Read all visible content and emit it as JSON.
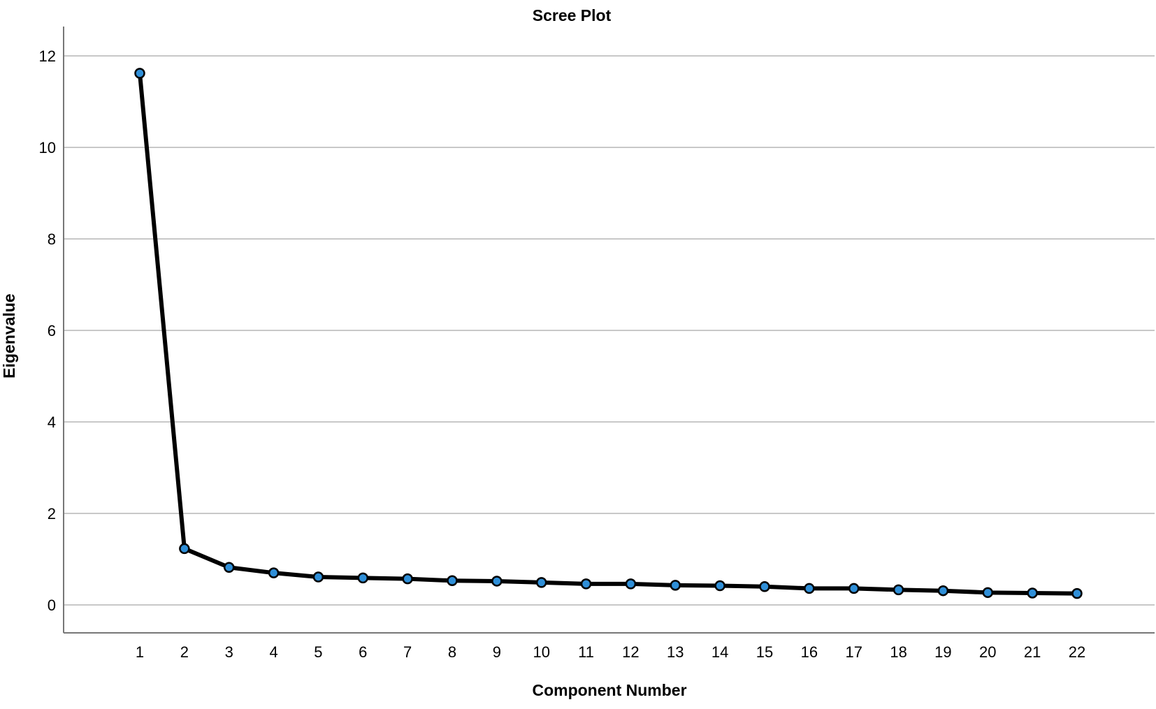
{
  "chart_data": {
    "type": "line",
    "title": "Scree Plot",
    "xlabel": "Component Number",
    "ylabel": "Eigenvalue",
    "x": [
      1,
      2,
      3,
      4,
      5,
      6,
      7,
      8,
      9,
      10,
      11,
      12,
      13,
      14,
      15,
      16,
      17,
      18,
      19,
      20,
      21,
      22
    ],
    "series": [
      {
        "name": "",
        "values": [
          11.62,
          1.23,
          0.82,
          0.7,
          0.61,
          0.59,
          0.57,
          0.53,
          0.52,
          0.49,
          0.46,
          0.46,
          0.43,
          0.42,
          0.4,
          0.36,
          0.36,
          0.33,
          0.31,
          0.27,
          0.26,
          0.25
        ]
      }
    ],
    "xlim": [
      1,
      22
    ],
    "ylim": [
      -0.65,
      12.65
    ],
    "yticks": [
      0,
      2,
      4,
      6,
      8,
      10,
      12
    ],
    "xticks": [
      1,
      2,
      3,
      4,
      5,
      6,
      7,
      8,
      9,
      10,
      11,
      12,
      13,
      14,
      15,
      16,
      17,
      18,
      19,
      20,
      21,
      22
    ],
    "grid": "horizontal",
    "legend": "none",
    "colors": {
      "line": "#000000",
      "marker_fill": "#2f8fd8",
      "marker_edge": "#000000",
      "grid": "#c8c8c8",
      "axis": "#777777"
    }
  }
}
